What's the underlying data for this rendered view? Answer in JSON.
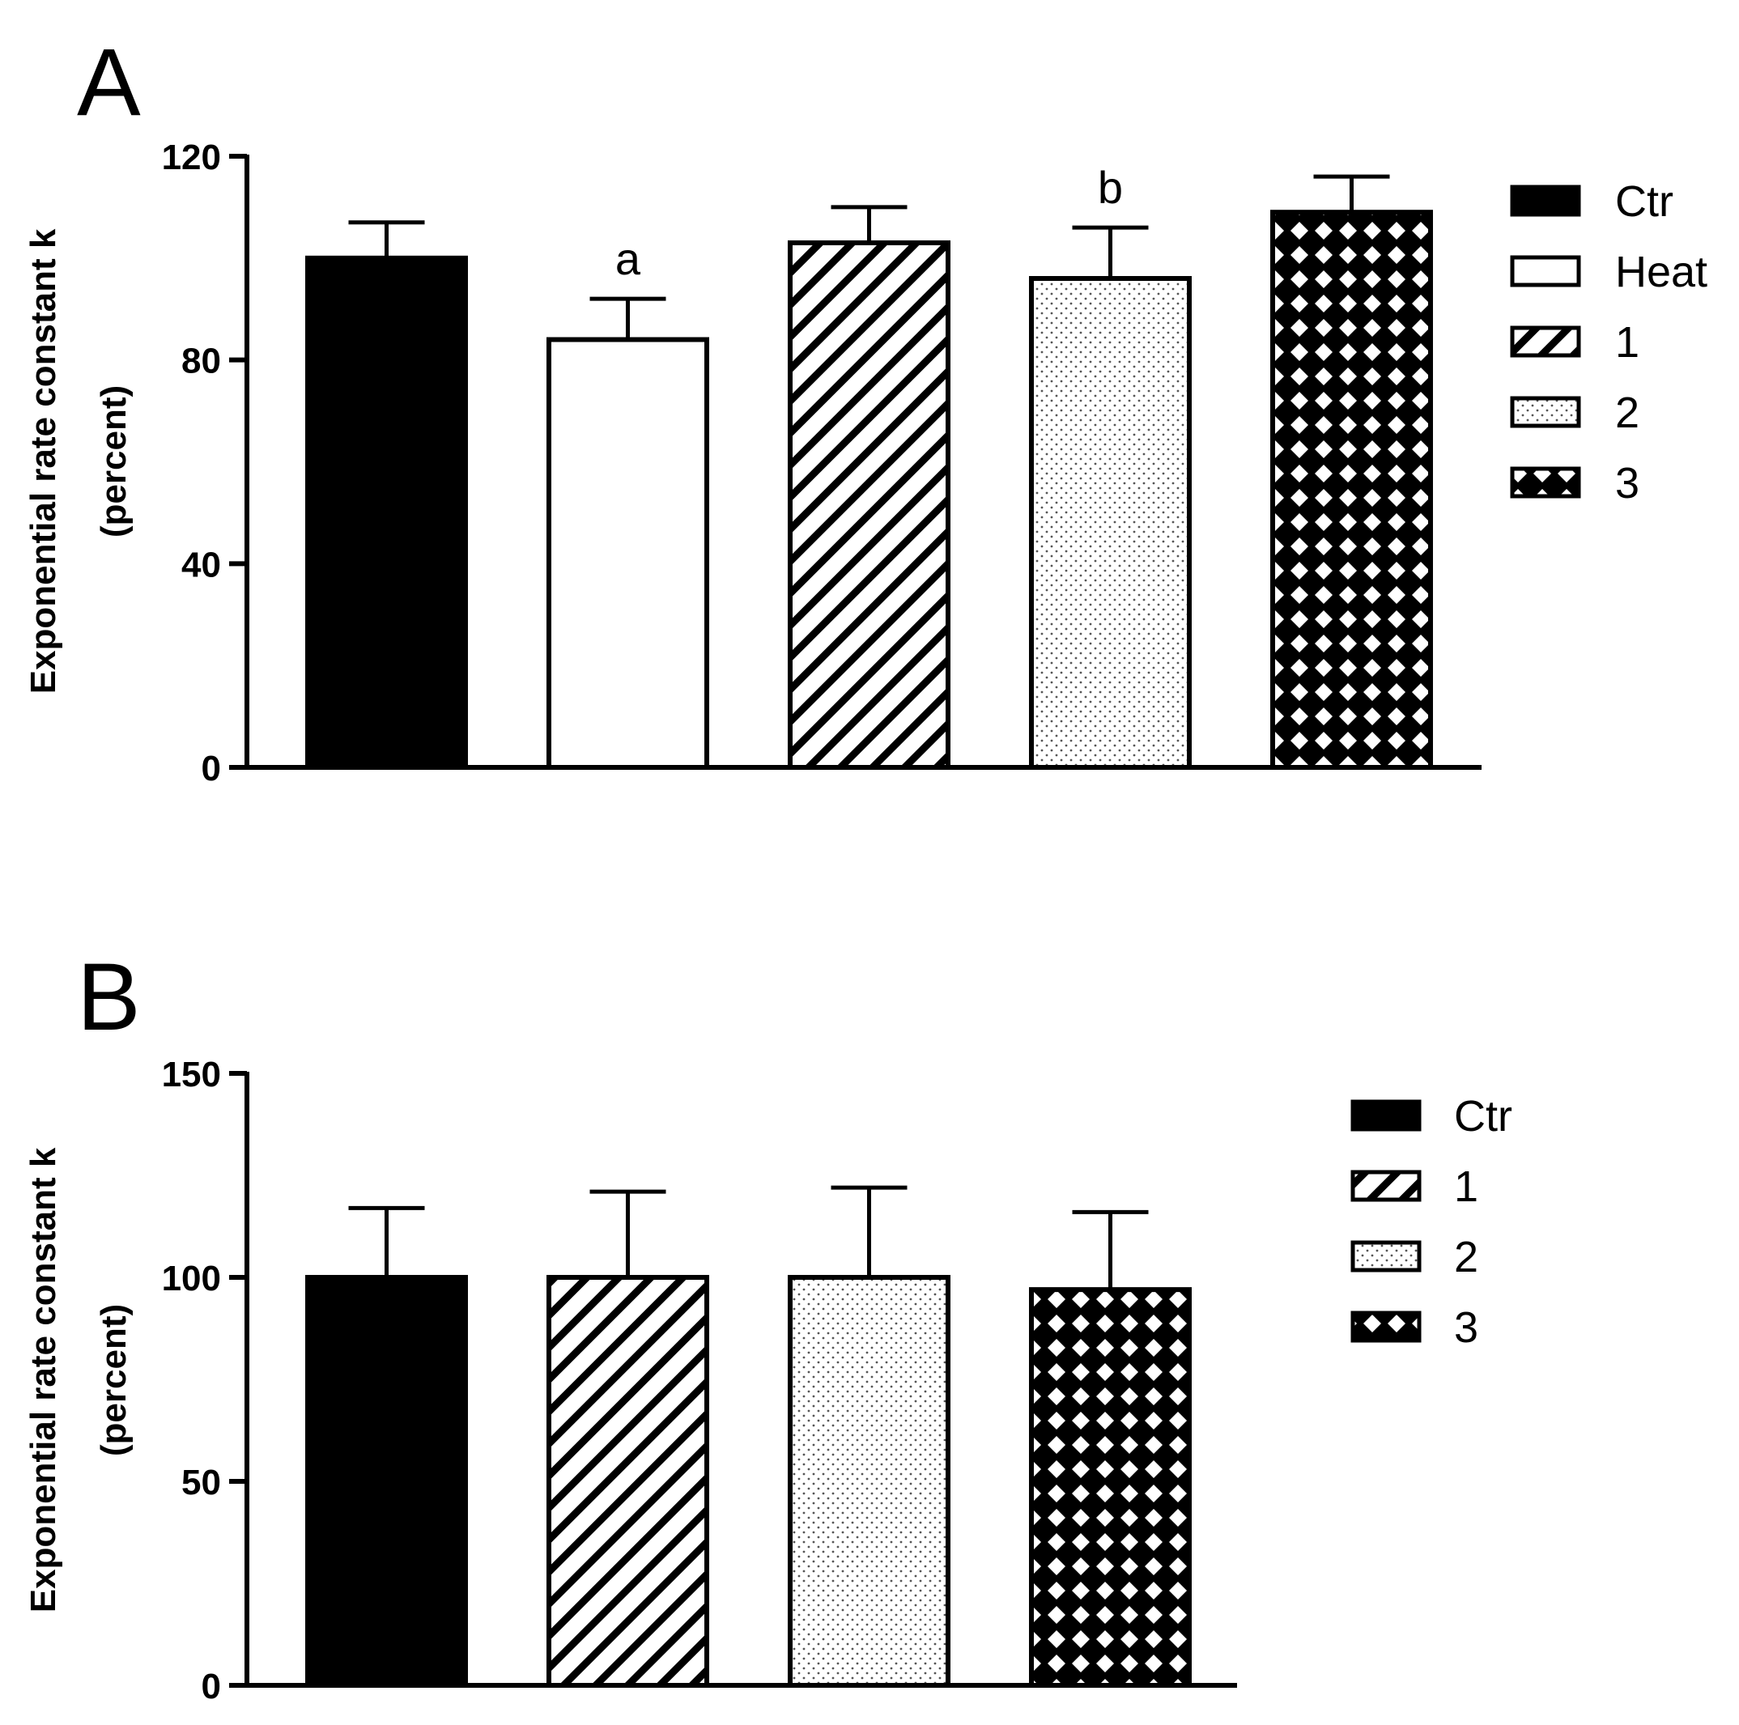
{
  "chart_data": [
    {
      "panel_label": "A",
      "type": "bar",
      "categories": [
        "Ctr",
        "Heat",
        "1",
        "2",
        "3"
      ],
      "values": [
        100,
        84,
        103,
        96,
        109
      ],
      "errors": [
        7,
        8,
        7,
        10,
        7
      ],
      "patterns": [
        "solid",
        "empty",
        "diagonal",
        "dots",
        "checker"
      ],
      "annotations": [
        "",
        "a",
        "",
        "b",
        ""
      ],
      "ylabel_line1": "Exponential rate constant k",
      "ylabel_line2": "(percent)",
      "ylim": [
        0,
        120
      ],
      "yticks": [
        0,
        40,
        80,
        120
      ],
      "ytick_labels": [
        "0",
        "40",
        "80",
        "120"
      ],
      "legend": [
        "Ctr",
        "Heat",
        "1",
        "2",
        "3"
      ],
      "legend_position": "right"
    },
    {
      "panel_label": "B",
      "type": "bar",
      "categories": [
        "Ctr",
        "1",
        "2",
        "3"
      ],
      "values": [
        100,
        100,
        100,
        97
      ],
      "errors": [
        17,
        21,
        22,
        19
      ],
      "patterns": [
        "solid",
        "diagonal",
        "dots",
        "checker"
      ],
      "annotations": [
        "",
        "",
        "",
        ""
      ],
      "ylabel_line1": "Exponential rate constant k",
      "ylabel_line2": "(percent)",
      "ylim": [
        0,
        150
      ],
      "yticks": [
        0,
        50,
        100,
        150
      ],
      "ytick_labels": [
        "0",
        "50",
        "100",
        "150"
      ],
      "legend": [
        "Ctr",
        "1",
        "2",
        "3"
      ],
      "legend_position": "right"
    }
  ]
}
